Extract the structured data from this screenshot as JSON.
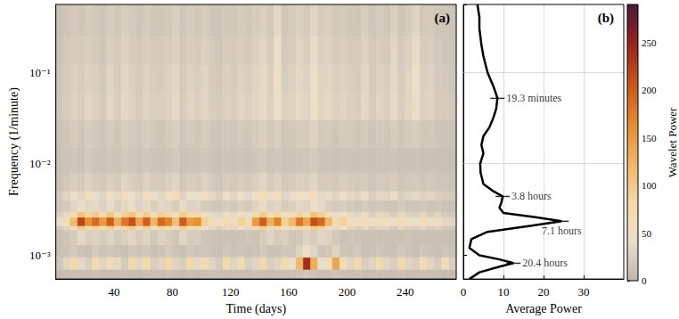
{
  "chart_data": [
    {
      "type": "heatmap",
      "title": "(a)",
      "x_label": "Time (days)",
      "y_label": "Frequency (1/minute)",
      "log": "y",
      "grid": false,
      "xlim": [
        0,
        275
      ],
      "xticks": [
        40,
        80,
        120,
        160,
        200,
        240
      ],
      "ylim": [
        0.00055,
        0.55
      ],
      "yticks": [
        {
          "value": 0.001,
          "label": "10⁻³"
        },
        {
          "value": 0.01,
          "label": "10⁻²"
        },
        {
          "value": 0.1,
          "label": "10⁻¹"
        }
      ],
      "time_bins": [
        0,
        5,
        10,
        15,
        20,
        25,
        30,
        35,
        40,
        45,
        50,
        55,
        60,
        65,
        70,
        75,
        80,
        85,
        90,
        95,
        100,
        105,
        110,
        115,
        120,
        125,
        130,
        135,
        140,
        145,
        150,
        155,
        160,
        165,
        170,
        175,
        180,
        185,
        190,
        195,
        200,
        205,
        210,
        215,
        220,
        225,
        230,
        235,
        240,
        245,
        250,
        255,
        260,
        265,
        270,
        275
      ],
      "frequency_bins": [
        0.00055,
        0.0007,
        0.00095,
        0.0013,
        0.0019,
        0.0021,
        0.0026,
        0.003,
        0.004,
        0.005,
        0.008,
        0.015,
        0.03,
        0.06,
        0.12,
        0.25,
        0.55
      ],
      "power": [
        [
          5,
          6,
          8,
          7,
          6,
          9,
          7,
          6,
          8,
          10,
          7,
          6,
          9,
          8,
          7,
          10,
          8,
          6,
          9,
          7,
          8,
          10,
          7,
          6,
          9,
          8,
          7,
          10,
          8,
          7,
          9,
          8,
          10,
          12,
          15,
          12,
          9,
          10,
          12,
          9,
          8,
          10,
          7,
          8,
          9,
          7,
          8,
          10,
          7,
          8,
          9,
          7,
          6,
          5,
          5
        ],
        [
          15,
          30,
          80,
          35,
          25,
          75,
          30,
          70,
          35,
          20,
          80,
          30,
          75,
          25,
          30,
          85,
          30,
          25,
          80,
          35,
          70,
          30,
          20,
          75,
          30,
          70,
          25,
          30,
          80,
          25,
          30,
          75,
          40,
          120,
          240,
          130,
          40,
          60,
          140,
          60,
          30,
          80,
          25,
          30,
          75,
          30,
          25,
          80,
          30,
          25,
          70,
          30,
          20,
          60,
          25
        ],
        [
          8,
          12,
          20,
          12,
          10,
          18,
          12,
          16,
          12,
          9,
          18,
          12,
          17,
          10,
          12,
          20,
          12,
          10,
          18,
          12,
          16,
          12,
          9,
          17,
          12,
          16,
          10,
          12,
          18,
          10,
          12,
          17,
          14,
          28,
          45,
          30,
          14,
          18,
          30,
          16,
          12,
          18,
          10,
          12,
          16,
          12,
          10,
          18,
          12,
          10,
          16,
          12,
          9,
          14,
          10
        ],
        [
          10,
          14,
          22,
          35,
          25,
          28,
          22,
          30,
          20,
          26,
          32,
          22,
          30,
          18,
          28,
          24,
          16,
          30,
          22,
          24,
          14,
          12,
          10,
          12,
          11,
          12,
          15,
          12,
          22,
          30,
          20,
          25,
          15,
          18,
          28,
          22,
          32,
          28,
          18,
          12,
          15,
          12,
          11,
          12,
          10,
          12,
          11,
          10,
          12,
          10,
          11,
          10,
          9,
          10,
          8
        ],
        [
          20,
          30,
          60,
          100,
          80,
          90,
          70,
          95,
          60,
          85,
          100,
          65,
          95,
          55,
          90,
          80,
          50,
          95,
          70,
          75,
          45,
          30,
          25,
          35,
          30,
          45,
          35,
          70,
          95,
          60,
          80,
          45,
          55,
          85,
          65,
          100,
          90,
          55,
          35,
          45,
          30,
          25,
          35,
          22,
          30,
          28,
          20,
          32,
          25,
          22,
          30,
          20,
          28,
          18,
          15
        ],
        [
          40,
          60,
          120,
          220,
          160,
          190,
          150,
          200,
          130,
          180,
          210,
          140,
          200,
          120,
          190,
          170,
          110,
          200,
          150,
          160,
          90,
          60,
          50,
          70,
          60,
          90,
          70,
          150,
          200,
          130,
          170,
          90,
          120,
          180,
          140,
          210,
          190,
          120,
          70,
          90,
          60,
          50,
          70,
          45,
          60,
          55,
          40,
          65,
          50,
          45,
          60,
          40,
          55,
          35,
          30
        ],
        [
          25,
          35,
          70,
          110,
          90,
          100,
          75,
          105,
          65,
          95,
          110,
          70,
          100,
          60,
          95,
          85,
          55,
          100,
          75,
          80,
          50,
          35,
          30,
          40,
          35,
          50,
          40,
          75,
          100,
          65,
          85,
          50,
          60,
          90,
          70,
          110,
          95,
          60,
          40,
          50,
          35,
          30,
          40,
          25,
          35,
          30,
          22,
          35,
          28,
          25,
          32,
          22,
          30,
          20,
          18
        ],
        [
          15,
          20,
          30,
          40,
          32,
          35,
          28,
          38,
          26,
          34,
          40,
          28,
          36,
          25,
          34,
          30,
          22,
          36,
          28,
          30,
          22,
          18,
          16,
          20,
          18,
          24,
          20,
          30,
          38,
          26,
          32,
          22,
          26,
          34,
          28,
          40,
          36,
          26,
          20,
          24,
          18,
          16,
          20,
          15,
          18,
          16,
          14,
          18,
          15,
          14,
          17,
          13,
          15,
          12,
          10
        ],
        [
          20,
          30,
          45,
          35,
          55,
          40,
          30,
          50,
          35,
          60,
          45,
          30,
          55,
          40,
          35,
          50,
          60,
          30,
          45,
          40,
          55,
          35,
          25,
          40,
          30,
          45,
          35,
          50,
          65,
          40,
          55,
          30,
          40,
          50,
          45,
          60,
          35,
          40,
          30,
          45,
          35,
          30,
          40,
          25,
          35,
          30,
          40,
          25,
          30,
          35,
          28,
          32,
          25,
          22,
          20
        ],
        [
          12,
          18,
          25,
          20,
          28,
          22,
          18,
          26,
          20,
          30,
          24,
          18,
          28,
          22,
          20,
          26,
          30,
          18,
          24,
          22,
          28,
          20,
          15,
          22,
          18,
          24,
          20,
          26,
          32,
          22,
          28,
          18,
          22,
          26,
          24,
          30,
          20,
          22,
          18,
          24,
          20,
          18,
          22,
          15,
          20,
          18,
          22,
          15,
          18,
          20,
          16,
          18,
          15,
          14,
          12
        ],
        [
          10,
          14,
          16,
          12,
          18,
          14,
          12,
          16,
          13,
          18,
          15,
          12,
          17,
          14,
          13,
          16,
          18,
          12,
          15,
          14,
          17,
          13,
          11,
          14,
          12,
          15,
          13,
          16,
          19,
          14,
          17,
          12,
          14,
          16,
          15,
          18,
          13,
          14,
          12,
          15,
          13,
          12,
          14,
          11,
          13,
          12,
          14,
          11,
          12,
          13,
          11,
          12,
          10,
          10,
          9
        ],
        [
          12,
          16,
          20,
          15,
          22,
          18,
          14,
          20,
          16,
          24,
          18,
          15,
          21,
          18,
          16,
          20,
          24,
          15,
          19,
          17,
          22,
          16,
          14,
          18,
          15,
          19,
          17,
          21,
          26,
          18,
          24,
          16,
          18,
          22,
          20,
          28,
          18,
          20,
          16,
          20,
          18,
          16,
          20,
          14,
          18,
          16,
          22,
          15,
          20,
          24,
          17,
          18,
          14,
          13,
          12
        ],
        [
          15,
          22,
          28,
          24,
          30,
          26,
          20,
          32,
          24,
          34,
          28,
          22,
          30,
          26,
          24,
          28,
          34,
          22,
          30,
          26,
          32,
          24,
          20,
          28,
          24,
          30,
          26,
          32,
          38,
          28,
          44,
          26,
          30,
          36,
          30,
          48,
          32,
          34,
          28,
          30,
          26,
          24,
          34,
          22,
          30,
          26,
          36,
          24,
          32,
          40,
          28,
          30,
          22,
          20,
          18
        ],
        [
          14,
          20,
          26,
          22,
          28,
          24,
          18,
          30,
          22,
          32,
          26,
          20,
          28,
          24,
          22,
          26,
          32,
          20,
          28,
          24,
          30,
          22,
          18,
          26,
          22,
          28,
          24,
          30,
          36,
          26,
          50,
          24,
          28,
          34,
          28,
          46,
          30,
          32,
          26,
          28,
          24,
          22,
          32,
          20,
          28,
          24,
          34,
          22,
          30,
          44,
          26,
          28,
          20,
          18,
          16
        ],
        [
          12,
          18,
          22,
          20,
          24,
          20,
          16,
          26,
          20,
          28,
          22,
          18,
          24,
          20,
          20,
          22,
          28,
          18,
          24,
          20,
          26,
          20,
          16,
          22,
          20,
          24,
          20,
          26,
          30,
          22,
          40,
          20,
          24,
          30,
          24,
          38,
          26,
          28,
          22,
          24,
          20,
          20,
          28,
          18,
          24,
          20,
          30,
          20,
          26,
          36,
          22,
          24,
          18,
          16,
          14
        ],
        [
          10,
          15,
          18,
          16,
          20,
          17,
          14,
          22,
          16,
          24,
          18,
          15,
          20,
          17,
          16,
          18,
          24,
          15,
          20,
          17,
          22,
          16,
          14,
          18,
          16,
          20,
          17,
          22,
          26,
          18,
          34,
          17,
          20,
          26,
          20,
          32,
          22,
          24,
          18,
          20,
          17,
          16,
          24,
          15,
          20,
          17,
          26,
          16,
          22,
          30,
          18,
          20,
          15,
          14,
          12
        ]
      ],
      "colorbar": {
        "label": "Wavelet Power",
        "range": [
          0,
          290
        ],
        "ticks": [
          0,
          50,
          100,
          150,
          200,
          250
        ]
      }
    },
    {
      "type": "line",
      "title": "(b)",
      "x_label": "Average Power",
      "log": "y",
      "grid": true,
      "tick_labels": "x",
      "color": "#000000",
      "xlim": [
        0,
        40
      ],
      "xticks": [
        0,
        10,
        20,
        30
      ],
      "ylim": [
        0.00055,
        0.55
      ],
      "yticks": [
        0.001,
        0.01,
        0.1
      ],
      "x": [
        1.5,
        4,
        9,
        12.5,
        9,
        4,
        1.5,
        2,
        6,
        17,
        24.5,
        18,
        10,
        9,
        9.5,
        9.8,
        7.5,
        5,
        4.3,
        4.2,
        5,
        4.5,
        5,
        6.5,
        7.5,
        8.2,
        8.5,
        7.5,
        6,
        5,
        4.5,
        4,
        4,
        3.5
      ],
      "y": [
        0.00055,
        0.00065,
        0.00075,
        0.00082,
        0.0009,
        0.001,
        0.0012,
        0.0015,
        0.0018,
        0.0021,
        0.00235,
        0.0026,
        0.0029,
        0.0033,
        0.0038,
        0.0044,
        0.005,
        0.006,
        0.008,
        0.01,
        0.013,
        0.016,
        0.02,
        0.025,
        0.032,
        0.04,
        0.052,
        0.07,
        0.1,
        0.15,
        0.2,
        0.3,
        0.4,
        0.55
      ],
      "annotations": [
        {
          "text": "19.3 minutes",
          "x": 8.5,
          "y": 0.0518
        },
        {
          "text": "3.8 hours",
          "x": 9.8,
          "y": 0.00439
        },
        {
          "text": "7.1 hours",
          "x": 24.5,
          "y": 0.00235
        },
        {
          "text": "20.4 hours",
          "x": 12.5,
          "y": 0.000817
        }
      ]
    }
  ]
}
